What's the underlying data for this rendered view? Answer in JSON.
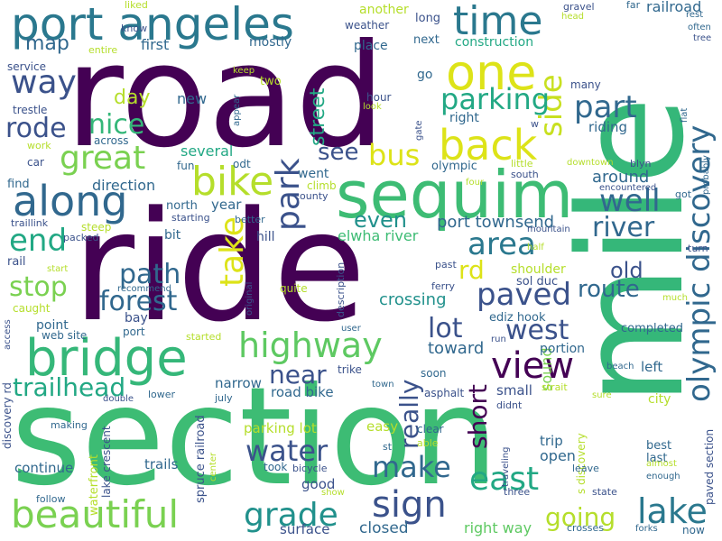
{
  "words": [
    {
      "text": "road",
      "color": "#440154"
    },
    {
      "text": "ride",
      "color": "#440154"
    },
    {
      "text": "mile",
      "color": "#35b779"
    },
    {
      "text": "section",
      "color": "#3dbc74"
    },
    {
      "text": "sequim",
      "color": "#3dbc74"
    },
    {
      "text": "port angeles",
      "color": "#2a788e"
    },
    {
      "text": "bridge",
      "color": "#35b779"
    },
    {
      "text": "one",
      "color": "#dde318"
    },
    {
      "text": "time",
      "color": "#2a788e"
    },
    {
      "text": "along",
      "color": "#31688e"
    },
    {
      "text": "back",
      "color": "#dde318"
    },
    {
      "text": "beautiful",
      "color": "#7ad151"
    },
    {
      "text": "bike",
      "color": "#b5de2b"
    },
    {
      "text": "view",
      "color": "#440154"
    },
    {
      "text": "highway",
      "color": "#5ec962"
    },
    {
      "text": "sign",
      "color": "#3b528b"
    },
    {
      "text": "east",
      "color": "#22a884"
    },
    {
      "text": "lake",
      "color": "#2a788e"
    },
    {
      "text": "grade",
      "color": "#21918c"
    },
    {
      "text": "olympic discovery",
      "color": "#31688e"
    },
    {
      "text": "way",
      "color": "#3b528b"
    },
    {
      "text": "great",
      "color": "#7ad151"
    },
    {
      "text": "end",
      "color": "#22a884"
    },
    {
      "text": "park",
      "color": "#3b528b"
    },
    {
      "text": "take",
      "color": "#dde318"
    },
    {
      "text": "paved",
      "color": "#3b528b"
    },
    {
      "text": "area",
      "color": "#2a788e"
    },
    {
      "text": "part",
      "color": "#31688e"
    },
    {
      "text": "side",
      "color": "#c8e020"
    },
    {
      "text": "parking",
      "color": "#22a884"
    },
    {
      "text": "well",
      "color": "#31688e"
    },
    {
      "text": "river",
      "color": "#31688e"
    },
    {
      "text": "bus",
      "color": "#dde318"
    },
    {
      "text": "water",
      "color": "#3b528b"
    },
    {
      "text": "make",
      "color": "#31688e"
    },
    {
      "text": "really",
      "color": "#3b528b"
    },
    {
      "text": "trailhead",
      "color": "#22a884"
    },
    {
      "text": "forest",
      "color": "#31688e"
    },
    {
      "text": "path",
      "color": "#31688e"
    },
    {
      "text": "stop",
      "color": "#7ad151"
    },
    {
      "text": "rode",
      "color": "#3b528b"
    },
    {
      "text": "nice",
      "color": "#35b779"
    },
    {
      "text": "west",
      "color": "#3b528b"
    },
    {
      "text": "lot",
      "color": "#3b528b"
    },
    {
      "text": "route",
      "color": "#31688e"
    },
    {
      "text": "rd",
      "color": "#dde318"
    },
    {
      "text": "short",
      "color": "#440154"
    },
    {
      "text": "near",
      "color": "#3b528b"
    },
    {
      "text": "going",
      "color": "#b5de2b"
    },
    {
      "text": "street",
      "color": "#22a884"
    },
    {
      "text": "map",
      "color": "#31688e"
    },
    {
      "text": "day",
      "color": "#b5de2b"
    },
    {
      "text": "see",
      "color": "#3b528b"
    },
    {
      "text": "even",
      "color": "#21918c"
    },
    {
      "text": "old",
      "color": "#3b528b"
    },
    {
      "text": "port townsend",
      "color": "#31688e"
    },
    {
      "text": "toward",
      "color": "#31688e"
    },
    {
      "text": "elwha river",
      "color": "#3dbc74"
    },
    {
      "text": "first",
      "color": "#31688e"
    },
    {
      "text": "new",
      "color": "#31688e"
    },
    {
      "text": "crossing",
      "color": "#21918c"
    },
    {
      "text": "around",
      "color": "#31688e"
    },
    {
      "text": "sound",
      "color": "#7ad151"
    },
    {
      "text": "railroad",
      "color": "#31688e"
    },
    {
      "text": "several",
      "color": "#22a884"
    },
    {
      "text": "direction",
      "color": "#31688e"
    },
    {
      "text": "right way",
      "color": "#5ec962"
    },
    {
      "text": "surface",
      "color": "#3b528b"
    },
    {
      "text": "closed",
      "color": "#31688e"
    },
    {
      "text": "parking lot",
      "color": "#b5de2b"
    },
    {
      "text": "road bike",
      "color": "#31688e"
    },
    {
      "text": "trails",
      "color": "#31688e"
    },
    {
      "text": "continue",
      "color": "#31688e"
    },
    {
      "text": "good",
      "color": "#3b528b"
    },
    {
      "text": "narrow",
      "color": "#31688e"
    },
    {
      "text": "trip",
      "color": "#31688e"
    },
    {
      "text": "open",
      "color": "#31688e"
    },
    {
      "text": "easy",
      "color": "#b5de2b"
    },
    {
      "text": "small",
      "color": "#3b528b"
    },
    {
      "text": "left",
      "color": "#31688e"
    },
    {
      "text": "city",
      "color": "#b5de2b"
    },
    {
      "text": "best",
      "color": "#31688e"
    },
    {
      "text": "last",
      "color": "#31688e"
    },
    {
      "text": "year",
      "color": "#31688e"
    },
    {
      "text": "point",
      "color": "#31688e"
    },
    {
      "text": "bay",
      "color": "#3b528b"
    },
    {
      "text": "went",
      "color": "#31688e"
    },
    {
      "text": "mostly",
      "color": "#31688e"
    },
    {
      "text": "hill",
      "color": "#3b528b"
    },
    {
      "text": "bit",
      "color": "#31688e"
    },
    {
      "text": "portion",
      "color": "#31688e"
    },
    {
      "text": "completed",
      "color": "#31688e"
    },
    {
      "text": "another",
      "color": "#b5de2b"
    },
    {
      "text": "place",
      "color": "#31688e"
    },
    {
      "text": "construction",
      "color": "#22a884"
    },
    {
      "text": "riding",
      "color": "#31688e"
    },
    {
      "text": "shoulder",
      "color": "#b5de2b"
    },
    {
      "text": "olympic",
      "color": "#31688e"
    },
    {
      "text": "spruce railroad",
      "color": "#3b528b"
    },
    {
      "text": "waterfront",
      "color": "#b5de2b"
    },
    {
      "text": "lake crescent",
      "color": "#3b528b"
    },
    {
      "text": "discovery rd",
      "color": "#3b528b"
    },
    {
      "text": "paved section",
      "color": "#3b528b"
    },
    {
      "text": "s discovery",
      "color": "#b5de2b"
    },
    {
      "text": "ediz hook",
      "color": "#31688e"
    },
    {
      "text": "sol duc",
      "color": "#3b528b"
    },
    {
      "text": "next",
      "color": "#31688e"
    },
    {
      "text": "long",
      "color": "#3b528b"
    },
    {
      "text": "weather",
      "color": "#3b528b"
    },
    {
      "text": "go",
      "color": "#31688e"
    },
    {
      "text": "right",
      "color": "#31688e"
    },
    {
      "text": "hour",
      "color": "#3b528b"
    },
    {
      "text": "many",
      "color": "#3b528b"
    },
    {
      "text": "two",
      "color": "#b5de2b"
    },
    {
      "text": "service",
      "color": "#3b528b"
    },
    {
      "text": "trestle",
      "color": "#3b528b"
    },
    {
      "text": "across",
      "color": "#31688e"
    },
    {
      "text": "work",
      "color": "#b5de2b"
    },
    {
      "text": "car",
      "color": "#3b528b"
    },
    {
      "text": "fun",
      "color": "#31688e"
    },
    {
      "text": "odt",
      "color": "#31688e"
    },
    {
      "text": "climb",
      "color": "#b5de2b"
    },
    {
      "text": "county",
      "color": "#3b528b"
    },
    {
      "text": "find",
      "color": "#31688e"
    },
    {
      "text": "north",
      "color": "#31688e"
    },
    {
      "text": "traillink",
      "color": "#3b528b"
    },
    {
      "text": "steep",
      "color": "#b5de2b"
    },
    {
      "text": "starting",
      "color": "#3b528b"
    },
    {
      "text": "better",
      "color": "#31688e"
    },
    {
      "text": "packed",
      "color": "#3b528b"
    },
    {
      "text": "rail",
      "color": "#3b528b"
    },
    {
      "text": "start",
      "color": "#b5de2b"
    },
    {
      "text": "recommend",
      "color": "#31688e"
    },
    {
      "text": "caught",
      "color": "#b5de2b"
    },
    {
      "text": "web site",
      "color": "#31688e"
    },
    {
      "text": "port",
      "color": "#31688e"
    },
    {
      "text": "access",
      "color": "#3b528b"
    },
    {
      "text": "started",
      "color": "#b5de2b"
    },
    {
      "text": "quite",
      "color": "#b5de2b"
    },
    {
      "text": "original",
      "color": "#3b528b"
    },
    {
      "text": "description",
      "color": "#3b528b"
    },
    {
      "text": "user",
      "color": "#31688e"
    },
    {
      "text": "trike",
      "color": "#3b528b"
    },
    {
      "text": "soon",
      "color": "#31688e"
    },
    {
      "text": "town",
      "color": "#31688e"
    },
    {
      "text": "asphalt",
      "color": "#3b528b"
    },
    {
      "text": "didnt",
      "color": "#3b528b"
    },
    {
      "text": "strait",
      "color": "#b5de2b"
    },
    {
      "text": "sure",
      "color": "#b5de2b"
    },
    {
      "text": "beach",
      "color": "#31688e"
    },
    {
      "text": "much",
      "color": "#b5de2b"
    },
    {
      "text": "lower",
      "color": "#31688e"
    },
    {
      "text": "double",
      "color": "#3b528b"
    },
    {
      "text": "july",
      "color": "#31688e"
    },
    {
      "text": "making",
      "color": "#31688e"
    },
    {
      "text": "clear",
      "color": "#31688e"
    },
    {
      "text": "able",
      "color": "#b5de2b"
    },
    {
      "text": "st",
      "color": "#31688e"
    },
    {
      "text": "traveling",
      "color": "#3b528b"
    },
    {
      "text": "center",
      "color": "#b5de2b"
    },
    {
      "text": "bicycle",
      "color": "#3b528b"
    },
    {
      "text": "took",
      "color": "#31688e"
    },
    {
      "text": "show",
      "color": "#b5de2b"
    },
    {
      "text": "follow",
      "color": "#31688e"
    },
    {
      "text": "three",
      "color": "#3b528b"
    },
    {
      "text": "crosses",
      "color": "#31688e"
    },
    {
      "text": "forks",
      "color": "#31688e"
    },
    {
      "text": "state",
      "color": "#3b528b"
    },
    {
      "text": "leave",
      "color": "#31688e"
    },
    {
      "text": "enough",
      "color": "#31688e"
    },
    {
      "text": "almost",
      "color": "#b5de2b"
    },
    {
      "text": "now",
      "color": "#31688e"
    },
    {
      "text": "liked",
      "color": "#b5de2b"
    },
    {
      "text": "know",
      "color": "#3b528b"
    },
    {
      "text": "entire",
      "color": "#b5de2b"
    },
    {
      "text": "keep",
      "color": "#b5de2b"
    },
    {
      "text": "appear",
      "color": "#31688e"
    },
    {
      "text": "look",
      "color": "#b5de2b"
    },
    {
      "text": "gate",
      "color": "#3b528b"
    },
    {
      "text": "w",
      "color": "#3b528b"
    },
    {
      "text": "gravel",
      "color": "#3b528b"
    },
    {
      "text": "head",
      "color": "#b5de2b"
    },
    {
      "text": "far",
      "color": "#31688e"
    },
    {
      "text": "rest",
      "color": "#31688e"
    },
    {
      "text": "often",
      "color": "#31688e"
    },
    {
      "text": "tree",
      "color": "#3b528b"
    },
    {
      "text": "flat",
      "color": "#31688e"
    },
    {
      "text": "little",
      "color": "#b5de2b"
    },
    {
      "text": "downtown",
      "color": "#b5de2b"
    },
    {
      "text": "blyn",
      "color": "#3b528b"
    },
    {
      "text": "south",
      "color": "#3b528b"
    },
    {
      "text": "four",
      "color": "#b5de2b"
    },
    {
      "text": "encountered",
      "color": "#3b528b"
    },
    {
      "text": "probably",
      "color": "#31688e"
    },
    {
      "text": "got",
      "color": "#31688e"
    },
    {
      "text": "mountain",
      "color": "#3b528b"
    },
    {
      "text": "half",
      "color": "#b5de2b"
    },
    {
      "text": "turn",
      "color": "#3b528b"
    },
    {
      "text": "past",
      "color": "#3b528b"
    },
    {
      "text": "ferry",
      "color": "#3b528b"
    },
    {
      "text": "run",
      "color": "#3b528b"
    }
  ]
}
